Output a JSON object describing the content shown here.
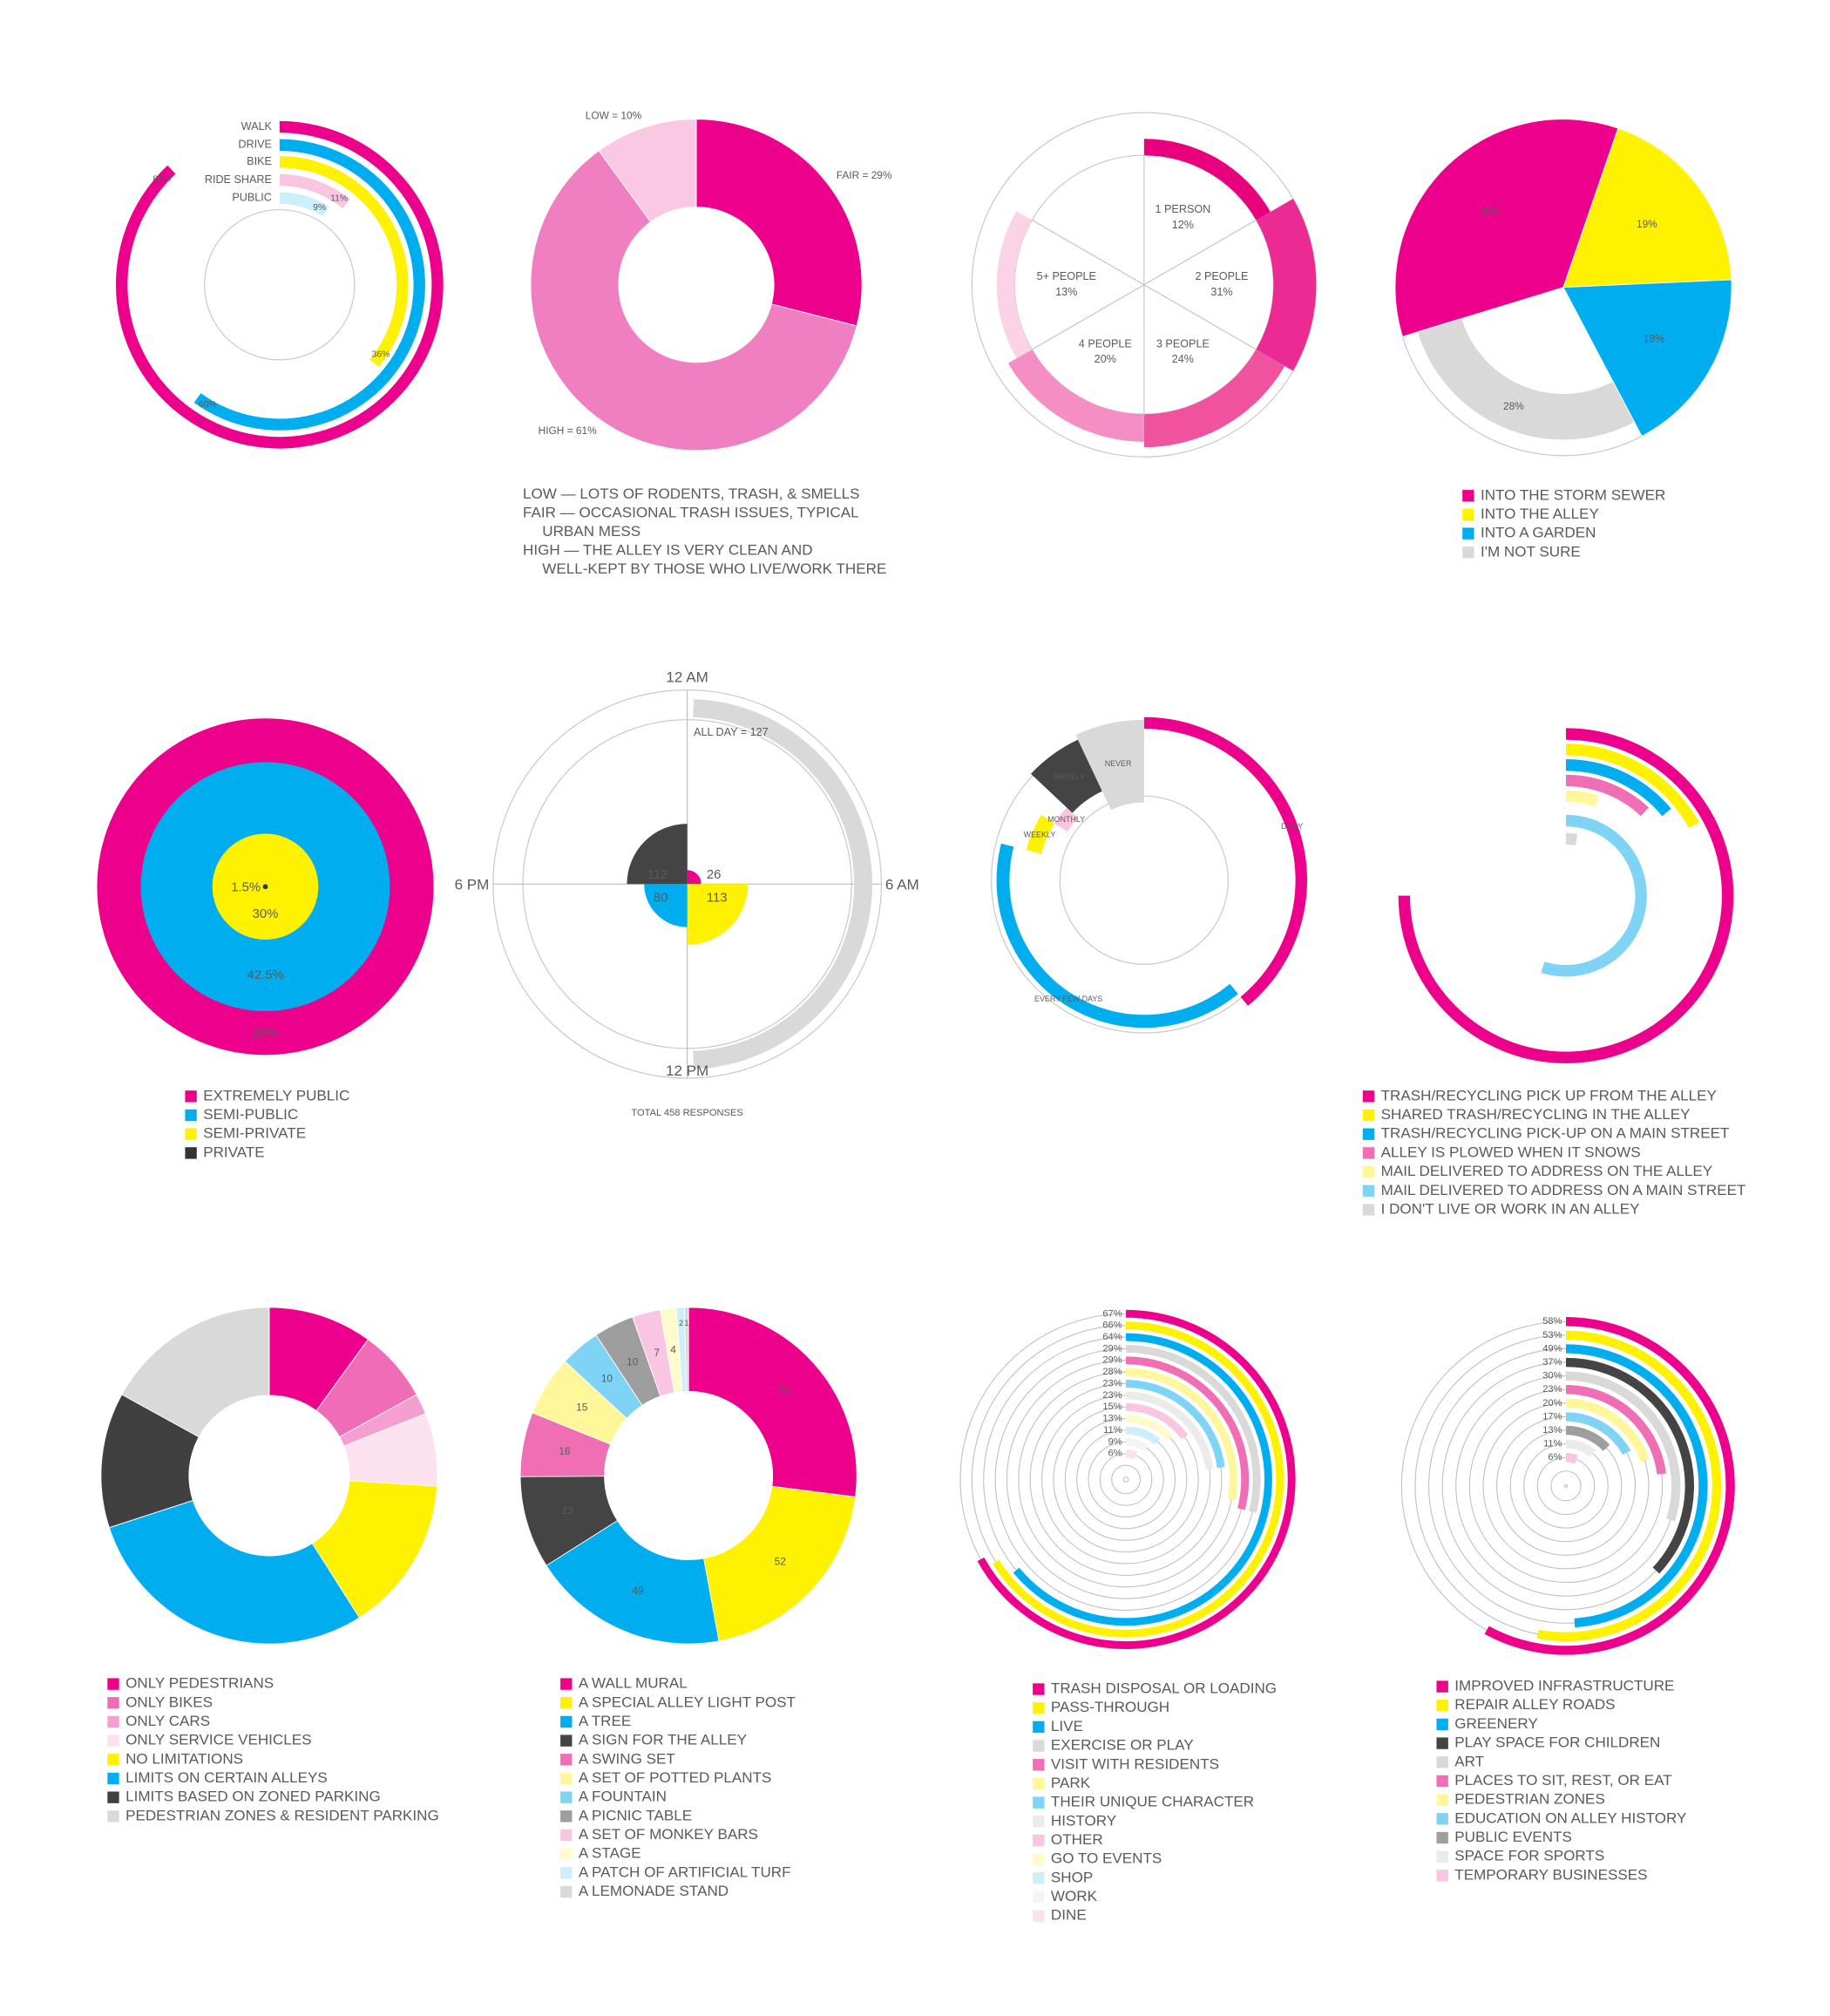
{
  "chart_data": [
    {
      "type": "radial_bar",
      "categories": [
        "WALK",
        "DRIVE",
        "BIKE",
        "RIDE SHARE",
        "PUBLIC"
      ],
      "values": [
        88,
        60,
        36,
        11,
        9
      ],
      "value_labels": [
        "88%",
        "60%",
        "36%",
        "11%",
        "9%"
      ],
      "xlim": [
        0,
        100
      ],
      "colors": [
        "#ec008c",
        "#00aeef",
        "#fff200",
        "#f9c5e1",
        "#cdeefb"
      ]
    },
    {
      "type": "donut",
      "values": [
        29,
        61,
        10
      ],
      "value_labels": [
        "FAIR = 29%",
        "HIGH = 61%",
        "LOW = 10%"
      ],
      "colors": [
        "#ec008c",
        "#f07fc2",
        "#fac8e3"
      ],
      "notes": [
        "LOW — LOTS OF RODENTS, TRASH, & SMELLS",
        "FAIR — OCCASIONAL TRASH ISSUES, TYPICAL",
        "URBAN MESS",
        "HIGH — THE ALLEY IS VERY CLEAN AND",
        "WELL-KEPT BY THOSE WHO LIVE/WORK THERE"
      ]
    },
    {
      "type": "polar",
      "categories": [
        "1 PERSON",
        "2 PEOPLE",
        "3 PEOPLE",
        "4 PEOPLE",
        "5+ PEOPLE",
        null
      ],
      "values": [
        12,
        31,
        24,
        20,
        13,
        null
      ],
      "value_labels": [
        "12%",
        "31%",
        "24%",
        "20%",
        "13%",
        null
      ],
      "colors": [
        "#e8007d",
        "#ec2a93",
        "#f0529f",
        "#f48ec4",
        "#fbd3e7",
        "#ffffff"
      ]
    },
    {
      "type": "pie",
      "categories": [
        "INTO THE STORM SEWER",
        "INTO THE ALLEY",
        "INTO A GARDEN",
        "I'M NOT SURE"
      ],
      "values": [
        35,
        19,
        18,
        28
      ],
      "value_labels": [
        "35%",
        "19%",
        "18%",
        "28%"
      ],
      "colors": [
        "#ec008c",
        "#fff200",
        "#00aeef",
        "#d9d9d9"
      ]
    },
    {
      "type": "nested",
      "categories": [
        "EXTREMELY PUBLIC",
        "SEMI-PUBLIC",
        "SEMI-PRIVATE",
        "PRIVATE"
      ],
      "values": [
        26,
        42.5,
        30,
        1.5
      ],
      "value_labels": [
        "26%",
        "42.5%",
        "30%",
        "1.5%"
      ],
      "colors": [
        "#ec008c",
        "#00aeef",
        "#fff200",
        "#333333"
      ]
    },
    {
      "type": "clock",
      "axis_labels": [
        "12 AM",
        "6 AM",
        "12 PM",
        "6 PM"
      ],
      "values": [
        26,
        113,
        80,
        112
      ],
      "colors": [
        "#ec008c",
        "#fff200",
        "#00aeef",
        "#444444"
      ],
      "all_day": {
        "value": 127,
        "label": "ALL DAY = 127"
      },
      "all_day_color": "#d9d9d9",
      "footnote": "TOTAL 458 RESPONSES"
    },
    {
      "type": "segments",
      "categories": [
        "DAILY",
        "EVERY FEW DAYS",
        "WEEKLY",
        "MONTHLY",
        "RARELY",
        "NEVER"
      ],
      "values": [
        39,
        40,
        5,
        3,
        6,
        7
      ],
      "xlim": [
        0,
        100
      ],
      "colors": [
        "#ec008c",
        "#00aeef",
        "#fff200",
        "#f9c5e1",
        "#444444",
        "#d9d9d9"
      ]
    },
    {
      "type": "radial_bar",
      "categories": [
        "TRASH/RECYCLING PICK UP FROM THE ALLEY",
        "SHARED TRASH/RECYCLING IN THE ALLEY",
        "TRASH/RECYCLING PICK-UP ON A MAIN STREET",
        "ALLEY IS PLOWED WHEN IT SNOWS",
        "MAIL DELIVERED TO ADDRESS ON THE ALLEY",
        "MAIL DELIVERED TO ADDRESS ON A MAIN STREET",
        "I DON'T LIVE OR WORK IN AN ALLEY"
      ],
      "values": [
        75,
        17,
        14,
        12,
        5,
        55,
        3
      ],
      "xlim": [
        0,
        100
      ],
      "colors": [
        "#ec008c",
        "#fff200",
        "#00aeef",
        "#f06eb4",
        "#fff799",
        "#7fd3f5",
        "#d9d9d9"
      ]
    },
    {
      "type": "donut",
      "categories": [
        "ONLY PEDESTRIANS",
        "ONLY BIKES",
        "ONLY CARS",
        "ONLY SERVICE VEHICLES",
        "NO LIMITATIONS",
        "LIMITS ON CERTAIN ALLEYS",
        "LIMITS BASED ON ZONED PARKING",
        "PEDESTRIAN ZONES & RESIDENT PARKING"
      ],
      "values": [
        10,
        7,
        2,
        7,
        15,
        29,
        13,
        17
      ],
      "colors": [
        "#ec008c",
        "#f06cb6",
        "#f59fd0",
        "#fce1ef",
        "#fff200",
        "#00aeef",
        "#404040",
        "#d9d9d9"
      ]
    },
    {
      "type": "donut",
      "categories": [
        "A WALL MURAL",
        "A SPECIAL ALLEY LIGHT POST",
        "A TREE",
        "A SIGN FOR THE ALLEY",
        "A SWING SET",
        "A SET OF POTTED PLANTS",
        "A FOUNTAIN",
        "A PICNIC TABLE",
        "A SET OF MONKEY BARS",
        "A STAGE",
        "A PATCH OF ARTIFICIAL TURF",
        "A LEMONADE STAND"
      ],
      "values": [
        70,
        52,
        49,
        23,
        16,
        15,
        10,
        10,
        7,
        4,
        2,
        1
      ],
      "colors": [
        "#ec008c",
        "#fff200",
        "#00aeef",
        "#444444",
        "#f06eb4",
        "#fff799",
        "#7fd3f5",
        "#9e9e9e",
        "#f9c5e1",
        "#fffbcc",
        "#cdeefb",
        "#d9d9d9"
      ]
    },
    {
      "type": "radial_bar",
      "categories": [
        "TRASH DISPOSAL OR LOADING",
        "PASS-THROUGH",
        "LIVE",
        "EXERCISE OR PLAY",
        "VISIT WITH RESIDENTS",
        "PARK",
        "THEIR UNIQUE CHARACTER",
        "HISTORY",
        "OTHER",
        "GO TO EVENTS",
        "SHOP",
        "WORK",
        "DINE"
      ],
      "values": [
        67,
        66,
        64,
        29,
        29,
        28,
        23,
        23,
        15,
        13,
        11,
        9,
        6
      ],
      "value_labels": [
        "67%",
        "66%",
        "64%",
        "29%",
        "29%",
        "28%",
        "23%",
        "23%",
        "15%",
        "13%",
        "11%",
        "9%",
        "6%"
      ],
      "xlim": [
        0,
        100
      ],
      "colors": [
        "#ec008c",
        "#fff200",
        "#00aeef",
        "#d9d9d9",
        "#f06eb4",
        "#fff799",
        "#7fd3f5",
        "#ebebeb",
        "#f9c5e1",
        "#fffbcc",
        "#cdeefb",
        "#f4f4f4",
        "#fde0ef"
      ]
    },
    {
      "type": "radial_bar",
      "categories": [
        "IMPROVED INFRASTRUCTURE",
        "REPAIR ALLEY ROADS",
        "GREENERY",
        "PLAY SPACE FOR CHILDREN",
        "ART",
        "PLACES TO SIT, REST, OR EAT",
        "PEDESTRIAN ZONES",
        "EDUCATION ON ALLEY HISTORY",
        "PUBLIC EVENTS",
        "SPACE FOR SPORTS",
        "TEMPORARY BUSINESSES"
      ],
      "values": [
        58,
        53,
        49,
        37,
        30,
        23,
        20,
        17,
        13,
        11,
        6
      ],
      "value_labels": [
        "58%",
        "53%",
        "49%",
        "37%",
        "30%",
        "23%",
        "20%",
        "17%",
        "13%",
        "11%",
        "6%"
      ],
      "xlim": [
        0,
        100
      ],
      "colors": [
        "#ec008c",
        "#fff200",
        "#00aeef",
        "#444444",
        "#d9d9d9",
        "#f06eb4",
        "#fff799",
        "#7fd3f5",
        "#9e9e9e",
        "#ebebeb",
        "#f9c5e1"
      ]
    }
  ]
}
